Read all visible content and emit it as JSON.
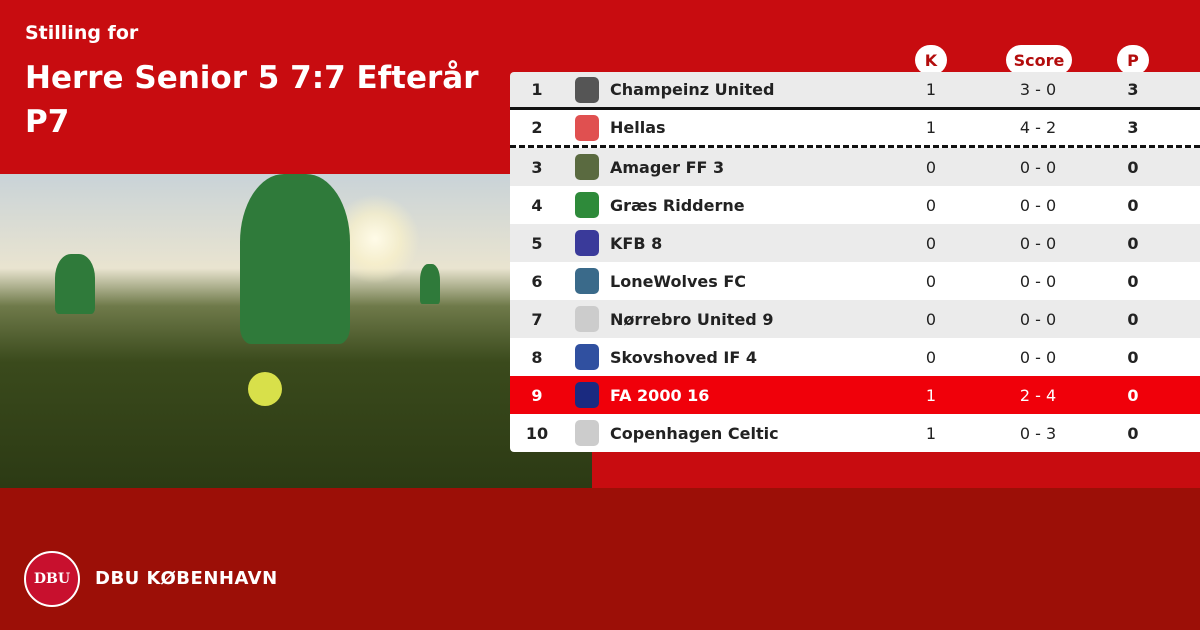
{
  "header": {
    "subtitle": "Stilling for",
    "title": "Herre Senior 5 7:7 Efterår P7"
  },
  "columns": {
    "k": "K",
    "score": "Score",
    "p": "P"
  },
  "rows": [
    {
      "rank": "1",
      "team": "Champeinz United",
      "k": "1",
      "score": "3 - 0",
      "p": "3",
      "crest": "#555"
    },
    {
      "rank": "2",
      "team": "Hellas",
      "k": "1",
      "score": "4 - 2",
      "p": "3",
      "crest": "#e05050"
    },
    {
      "rank": "3",
      "team": "Amager FF 3",
      "k": "0",
      "score": "0 - 0",
      "p": "0",
      "crest": "#5a6a40"
    },
    {
      "rank": "4",
      "team": "Græs Ridderne",
      "k": "0",
      "score": "0 - 0",
      "p": "0",
      "crest": "#2e8a3a"
    },
    {
      "rank": "5",
      "team": "KFB 8",
      "k": "0",
      "score": "0 - 0",
      "p": "0",
      "crest": "#3a3a9a"
    },
    {
      "rank": "6",
      "team": "LoneWolves FC",
      "k": "0",
      "score": "0 - 0",
      "p": "0",
      "crest": "#3a6a8a"
    },
    {
      "rank": "7",
      "team": "Nørrebro United 9",
      "k": "0",
      "score": "0 - 0",
      "p": "0",
      "crest": "#ccc"
    },
    {
      "rank": "8",
      "team": "Skovshoved IF 4",
      "k": "0",
      "score": "0 - 0",
      "p": "0",
      "crest": "#3050a0"
    },
    {
      "rank": "9",
      "team": "FA 2000 16",
      "k": "1",
      "score": "2 - 4",
      "p": "0",
      "crest": "#1a2a80"
    },
    {
      "rank": "10",
      "team": "Copenhagen Celtic",
      "k": "1",
      "score": "0 - 3",
      "p": "0",
      "crest": "#ccc"
    }
  ],
  "footer": {
    "brand": "DBU KØBENHAVN",
    "logo_text": "DBU"
  },
  "colors": {
    "primary": "#c80c10",
    "footer": "#9c0f07",
    "highlight": "#f0000a"
  }
}
